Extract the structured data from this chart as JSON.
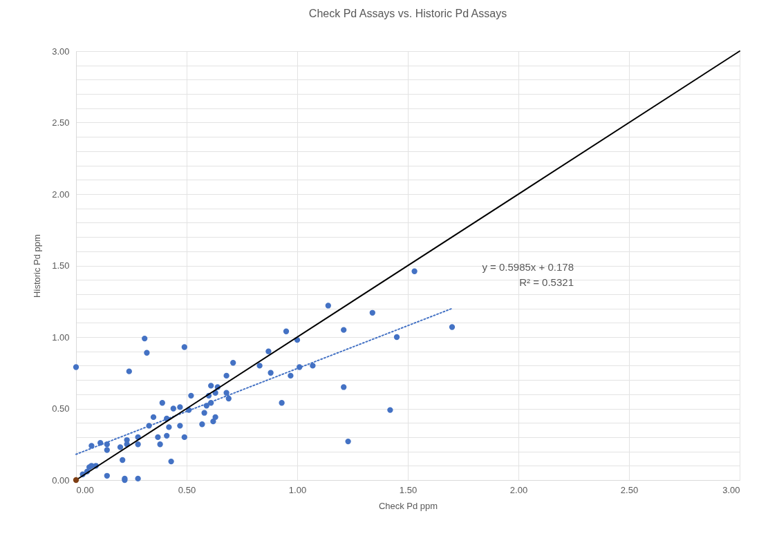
{
  "chart_data": {
    "type": "scatter",
    "title": "Check Pd Assays vs. Historic Pd Assays",
    "xlabel": "Check Pd ppm",
    "ylabel": "Historic Pd ppm",
    "xlim": [
      0,
      3
    ],
    "ylim": [
      0,
      3
    ],
    "xticks": [
      {
        "value": 0,
        "label": "0.00"
      },
      {
        "value": 0.5,
        "label": "0.50"
      },
      {
        "value": 1,
        "label": "1.00"
      },
      {
        "value": 1.5,
        "label": "1.50"
      },
      {
        "value": 2,
        "label": "2.00"
      },
      {
        "value": 2.5,
        "label": "2.50"
      },
      {
        "value": 3,
        "label": "3.00"
      }
    ],
    "yticks": [
      {
        "value": 0,
        "label": "0.00"
      },
      {
        "value": 0.1,
        "label": null
      },
      {
        "value": 0.2,
        "label": null
      },
      {
        "value": 0.3,
        "label": null
      },
      {
        "value": 0.4,
        "label": null
      },
      {
        "value": 0.5,
        "label": "0.50"
      },
      {
        "value": 0.6,
        "label": null
      },
      {
        "value": 0.7,
        "label": null
      },
      {
        "value": 0.8,
        "label": null
      },
      {
        "value": 0.9,
        "label": null
      },
      {
        "value": 1,
        "label": "1.00"
      },
      {
        "value": 1.1,
        "label": null
      },
      {
        "value": 1.2,
        "label": null
      },
      {
        "value": 1.3,
        "label": null
      },
      {
        "value": 1.4,
        "label": null
      },
      {
        "value": 1.5,
        "label": "1.50"
      },
      {
        "value": 1.6,
        "label": null
      },
      {
        "value": 1.7,
        "label": null
      },
      {
        "value": 1.8,
        "label": null
      },
      {
        "value": 1.9,
        "label": null
      },
      {
        "value": 2,
        "label": "2.00"
      },
      {
        "value": 2.1,
        "label": null
      },
      {
        "value": 2.2,
        "label": null
      },
      {
        "value": 2.3,
        "label": null
      },
      {
        "value": 2.4,
        "label": null
      },
      {
        "value": 2.5,
        "label": "2.50"
      },
      {
        "value": 2.6,
        "label": null
      },
      {
        "value": 2.7,
        "label": null
      },
      {
        "value": 2.8,
        "label": null
      },
      {
        "value": 2.9,
        "label": null
      },
      {
        "value": 3,
        "label": "3.00"
      }
    ],
    "grid": true,
    "annotations": [
      "y = 0.5985x + 0.178",
      "R² = 0.5321"
    ],
    "series": [
      {
        "type": "scatter",
        "color": "#4472c4",
        "marker": "circle",
        "x": [
          0.0,
          0.03,
          0.05,
          0.06,
          0.07,
          0.09,
          0.07,
          0.11,
          0.14,
          0.14,
          0.14,
          0.2,
          0.21,
          0.22,
          0.22,
          0.23,
          0.23,
          0.28,
          0.28,
          0.28,
          0.33,
          0.35,
          0.37,
          0.38,
          0.39,
          0.41,
          0.42,
          0.41,
          0.43,
          0.44,
          0.47,
          0.47,
          0.49,
          0.51,
          0.52,
          0.57,
          0.58,
          0.59,
          0.6,
          0.61,
          0.62,
          0.63,
          0.61,
          0.64,
          0.63,
          0.68,
          0.69,
          0.68,
          0.71,
          0.83,
          0.87,
          0.88,
          0.95,
          0.93,
          0.97,
          1.0,
          1.01,
          1.07,
          1.14,
          1.21,
          1.21,
          1.23,
          1.34,
          1.42,
          1.45,
          1.53,
          1.7,
          0.31,
          0.32,
          0.24,
          0.49
        ],
        "values": [
          0.79,
          0.04,
          0.06,
          0.09,
          0.1,
          0.1,
          0.24,
          0.26,
          0.25,
          0.21,
          0.03,
          0.23,
          0.14,
          0.0,
          0.01,
          0.28,
          0.25,
          0.3,
          0.25,
          0.01,
          0.38,
          0.44,
          0.3,
          0.25,
          0.54,
          0.43,
          0.37,
          0.31,
          0.13,
          0.5,
          0.51,
          0.38,
          0.3,
          0.49,
          0.59,
          0.39,
          0.47,
          0.52,
          0.59,
          0.54,
          0.41,
          0.44,
          0.66,
          0.65,
          0.61,
          0.61,
          0.57,
          0.73,
          0.82,
          0.8,
          0.9,
          0.75,
          1.04,
          0.54,
          0.73,
          0.98,
          0.79,
          0.8,
          1.22,
          1.05,
          0.65,
          0.27,
          1.17,
          0.49,
          1.0,
          1.46,
          1.07,
          0.99,
          0.89,
          0.76,
          0.93
        ]
      },
      {
        "type": "line",
        "color": "#4472c4",
        "line_style": "dotted",
        "marker": "none",
        "x": [
          0,
          1.7
        ],
        "values": [
          0.18,
          1.2
        ]
      },
      {
        "type": "line",
        "color": "#000000",
        "line_style": "solid",
        "marker": "none",
        "x": [
          0,
          3
        ],
        "values": [
          0,
          3
        ]
      },
      {
        "type": "scatter",
        "color": "#7f3f14",
        "marker": "circle",
        "x": [
          0
        ],
        "values": [
          0
        ]
      }
    ]
  }
}
